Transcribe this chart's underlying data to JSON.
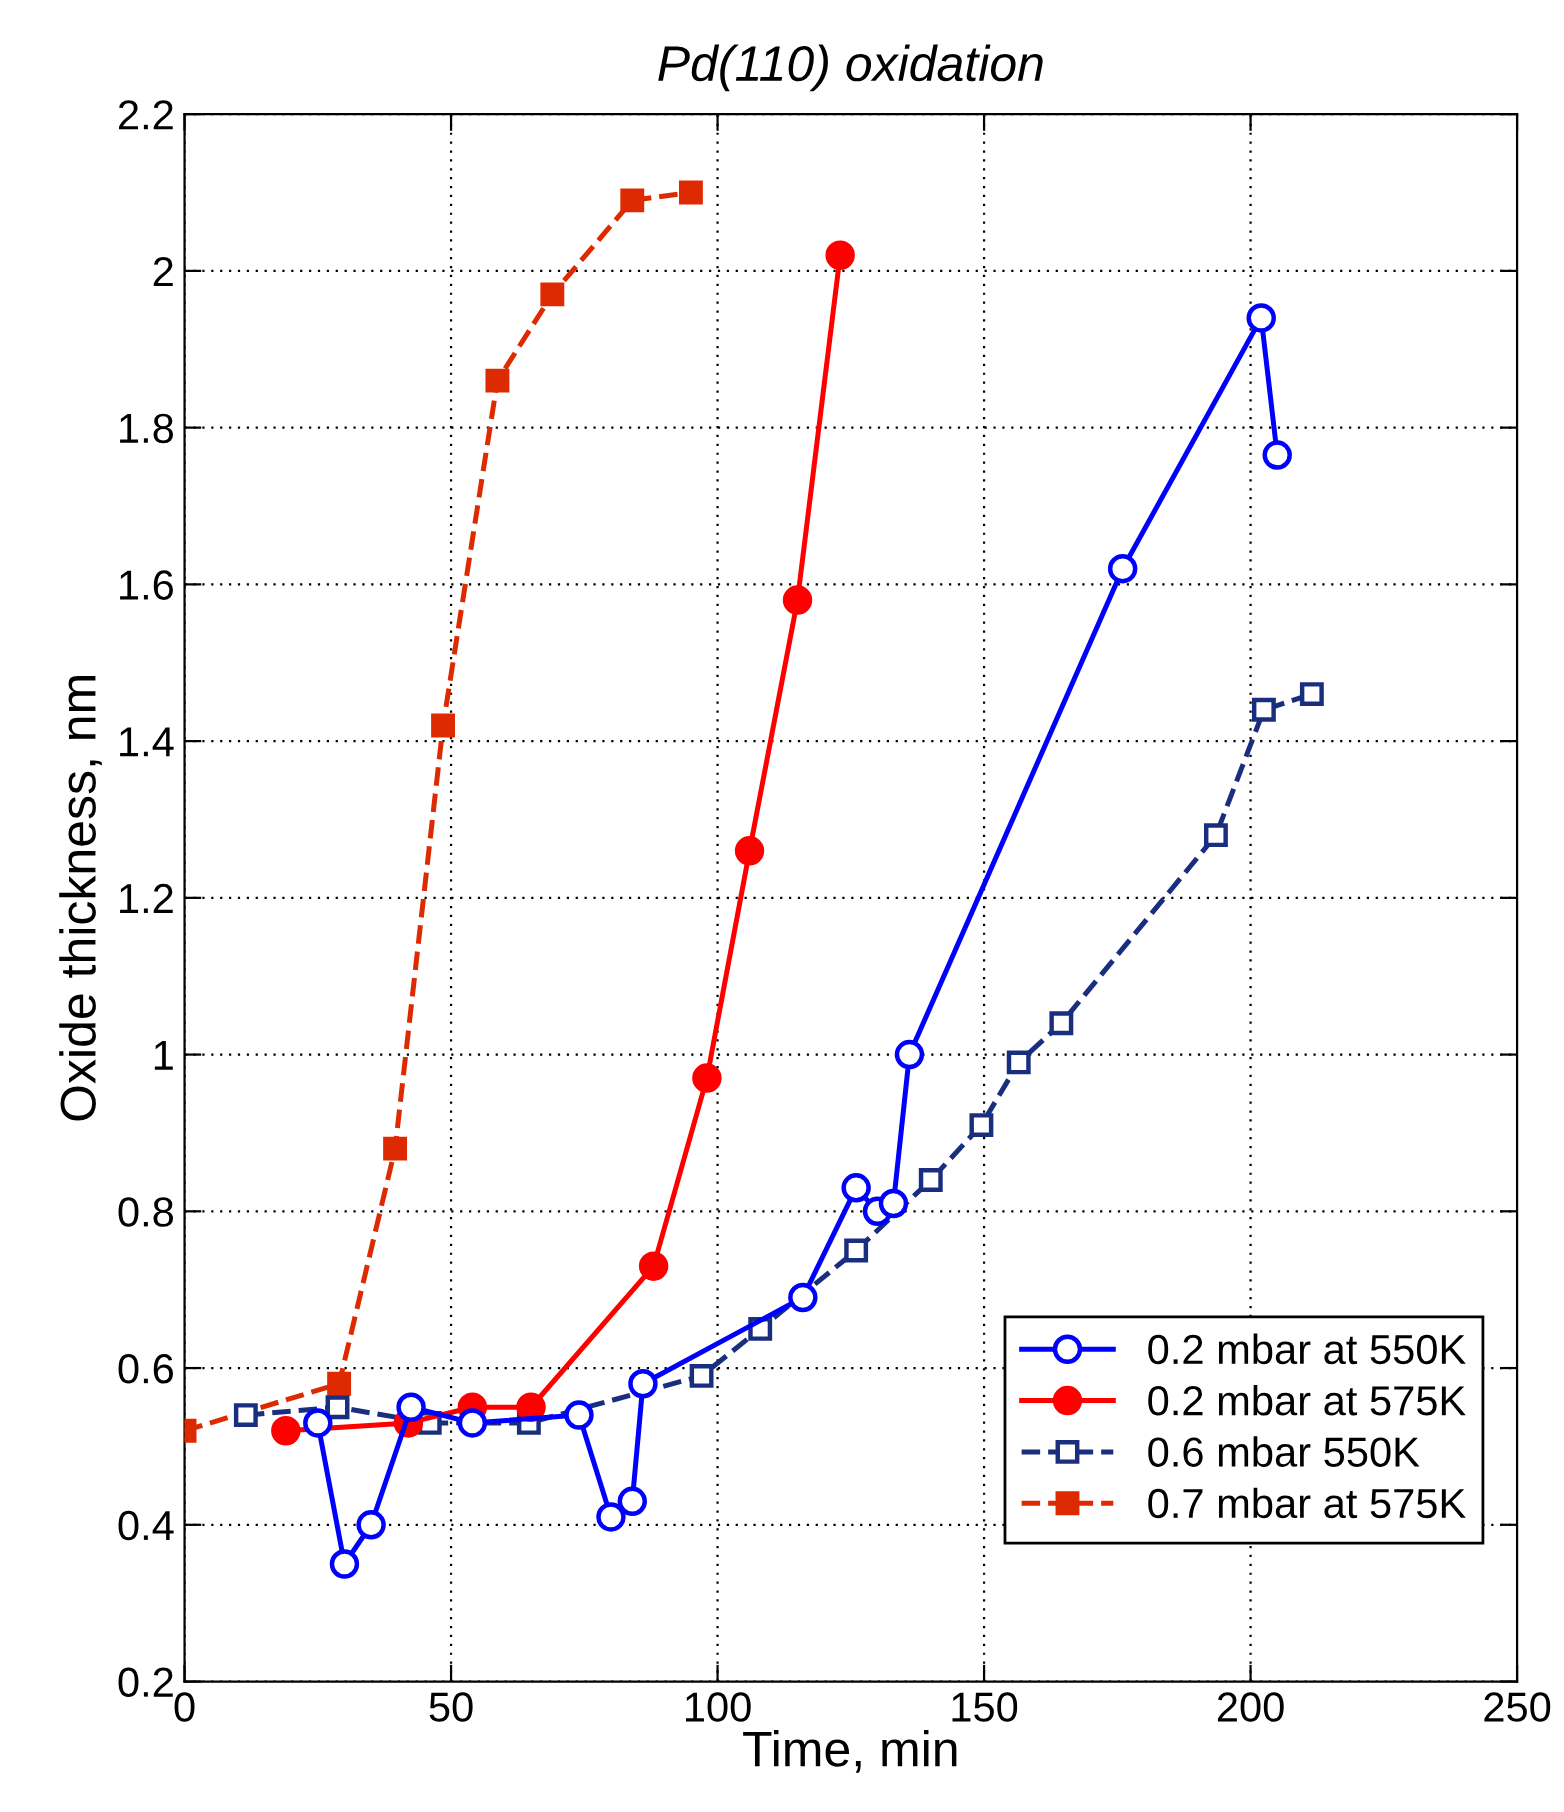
{
  "chart_data": {
    "type": "line",
    "title": "Pd(110) oxidation",
    "xlabel": "Time, min",
    "ylabel": "Oxide thickness, nm",
    "xlim": [
      0,
      250
    ],
    "xticks": [
      0,
      50,
      100,
      150,
      200,
      250
    ],
    "ylim": [
      0.2,
      2.2
    ],
    "yticks": [
      0.2,
      0.4,
      0.6,
      0.8,
      1,
      1.2,
      1.4,
      1.6,
      1.8,
      2,
      2.2
    ],
    "grid": true,
    "legend": "bottom right",
    "series": [
      {
        "name": "0.2 mbar at 550K",
        "color": "#0000ff",
        "marker": "circle",
        "line_style": "solid",
        "x": [
          25,
          30,
          35,
          42.5,
          54,
          74,
          80,
          84,
          86,
          116,
          126,
          130,
          133,
          136,
          176,
          202,
          205
        ],
        "values": [
          0.53,
          0.35,
          0.4,
          0.55,
          0.53,
          0.54,
          0.41,
          0.43,
          0.58,
          0.69,
          0.83,
          0.8,
          0.81,
          1.0,
          1.62,
          1.94,
          1.765
        ]
      },
      {
        "name": "0.2 mbar at 575K",
        "color": "#ff0000",
        "marker": "circle",
        "line_style": "solid",
        "x": [
          19,
          42,
          54,
          65,
          88,
          98,
          106,
          115,
          123
        ],
        "values": [
          0.52,
          0.53,
          0.55,
          0.55,
          0.73,
          0.97,
          1.26,
          1.58,
          2.02
        ]
      },
      {
        "name": "0.6 mbar 550K",
        "color": "#1a2e80",
        "marker": "square",
        "line_style": "dashed",
        "x": [
          11.5,
          28.7,
          46,
          64.6,
          97,
          108,
          126,
          140,
          149.5,
          156.5,
          164.5,
          193.5,
          202.5,
          211.5
        ],
        "values": [
          0.54,
          0.55,
          0.53,
          0.53,
          0.59,
          0.65,
          0.75,
          0.84,
          0.91,
          0.99,
          1.04,
          1.28,
          1.44,
          1.46
        ]
      },
      {
        "name": "0.7 mbar at 575K",
        "color": "#dd2a00",
        "marker": "square",
        "line_style": "dashed",
        "x": [
          0,
          29,
          39.5,
          48.5,
          58.7,
          69,
          84,
          95
        ],
        "values": [
          0.52,
          0.58,
          0.88,
          1.42,
          1.86,
          1.97,
          2.09,
          2.1
        ]
      }
    ]
  }
}
